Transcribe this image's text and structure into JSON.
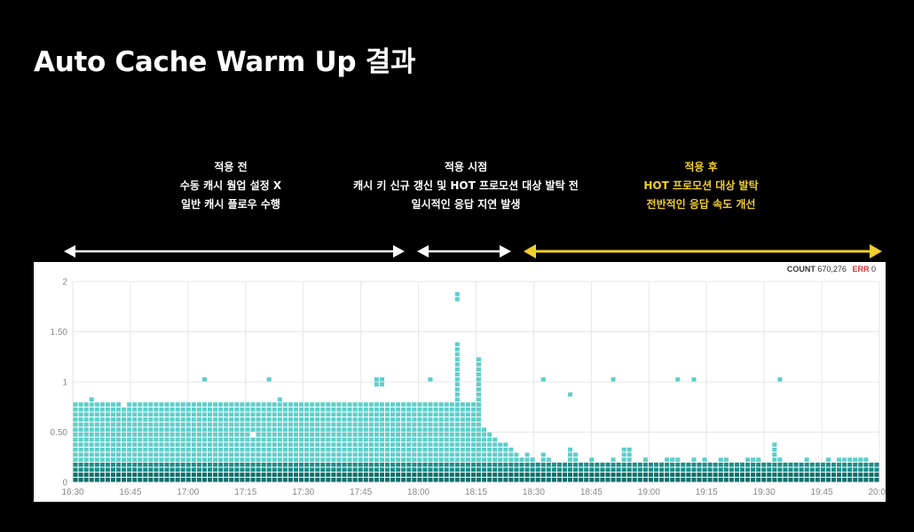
{
  "page": {
    "title": "Auto Cache Warm Up 결과"
  },
  "phases": [
    {
      "key": "before",
      "title": "적용 전",
      "lines": [
        "수동 캐시 웜업 설정 X",
        "일반 캐시 플로우 수행"
      ],
      "color": "#ffffff"
    },
    {
      "key": "during",
      "title": "적용 시점",
      "lines": [
        "캐시 키 신규 갱신 및 HOT 프로모션 대상 발탁 전",
        "일시적인 응답 지연 발생"
      ],
      "color": "#ffffff"
    },
    {
      "key": "after",
      "title": "적용 후",
      "lines": [
        "HOT 프로모션 대상 발탁",
        "전반적인 응답 속도 개선"
      ],
      "color": "#f1cf2a"
    }
  ],
  "legend": {
    "count_label": "COUNT",
    "count_value": "670,276",
    "err_label": "ERR",
    "err_value": "0"
  },
  "chart_data": {
    "type": "heatmap",
    "x_start": "16:30",
    "x_end": "20:00",
    "x_ticks": [
      "16:30",
      "16:45",
      "17:00",
      "17:15",
      "17:30",
      "17:45",
      "18:00",
      "18:15",
      "18:30",
      "18:45",
      "19:00",
      "19:15",
      "19:30",
      "19:45",
      "20:00"
    ],
    "y_ticks": [
      "0",
      "0.50",
      "1",
      "1.50",
      "2"
    ],
    "ylim": [
      0,
      2
    ],
    "y_bin_size": 0.05,
    "x_bin_minutes": 1.4,
    "grid": true,
    "colors": {
      "high": "#0d6e6a",
      "mid": "#178d88",
      "low": "#5ccfcb",
      "light": "#8ee0dc",
      "grid": "#e6e6e6"
    },
    "columns": [
      {
        "dense": [
          0,
          4
        ],
        "low": 12
      },
      {
        "dense": [
          0,
          4
        ],
        "low": 12
      },
      {
        "dense": [
          0,
          4
        ],
        "low": 12
      },
      {
        "dense": [
          0,
          4
        ],
        "low": 13
      },
      {
        "dense": [
          0,
          4
        ],
        "low": 12
      },
      {
        "dense": [
          0,
          4
        ],
        "low": 12
      },
      {
        "dense": [
          0,
          4
        ],
        "low": 12
      },
      {
        "dense": [
          0,
          4
        ],
        "low": 12
      },
      {
        "dense": [
          0,
          4
        ],
        "low": 12
      },
      {
        "dense": [
          0,
          4
        ],
        "low": 11
      },
      {
        "dense": [
          0,
          4
        ],
        "low": 12
      },
      {
        "dense": [
          0,
          4
        ],
        "low": 12
      },
      {
        "dense": [
          0,
          4
        ],
        "low": 12
      },
      {
        "dense": [
          0,
          4
        ],
        "low": 12
      },
      {
        "dense": [
          0,
          4
        ],
        "low": 12
      },
      {
        "dense": [
          0,
          4
        ],
        "low": 12
      },
      {
        "dense": [
          0,
          4
        ],
        "low": 12
      },
      {
        "dense": [
          0,
          4
        ],
        "low": 12
      },
      {
        "dense": [
          0,
          4
        ],
        "low": 12
      },
      {
        "dense": [
          0,
          4
        ],
        "low": 12
      },
      {
        "dense": [
          0,
          4
        ],
        "low": 12
      },
      {
        "dense": [
          0,
          4
        ],
        "low": 12
      },
      {
        "dense": [
          0,
          4
        ],
        "low": 12
      },
      {
        "dense": [
          0,
          4
        ],
        "low": 12
      },
      {
        "dense": [
          0,
          4
        ],
        "low": 12,
        "extra": [
          20
        ]
      },
      {
        "dense": [
          0,
          4
        ],
        "low": 12
      },
      {
        "dense": [
          0,
          4
        ],
        "low": 12
      },
      {
        "dense": [
          0,
          4
        ],
        "low": 12
      },
      {
        "dense": [
          0,
          4
        ],
        "low": 12
      },
      {
        "dense": [
          0,
          4
        ],
        "low": 12
      },
      {
        "dense": [
          0,
          4
        ],
        "low": 12
      },
      {
        "dense": [
          0,
          4
        ],
        "low": 12
      },
      {
        "dense": [
          0,
          4
        ],
        "low": 12
      },
      {
        "dense": [
          0,
          4
        ],
        "low": 12,
        "gap": [
          9
        ]
      },
      {
        "dense": [
          0,
          4
        ],
        "low": 12
      },
      {
        "dense": [
          0,
          4
        ],
        "low": 12
      },
      {
        "dense": [
          0,
          4
        ],
        "low": 12,
        "extra": [
          20
        ]
      },
      {
        "dense": [
          0,
          4
        ],
        "low": 12
      },
      {
        "dense": [
          0,
          4
        ],
        "low": 13
      },
      {
        "dense": [
          0,
          4
        ],
        "low": 12
      },
      {
        "dense": [
          0,
          4
        ],
        "low": 12
      },
      {
        "dense": [
          0,
          4
        ],
        "low": 12
      },
      {
        "dense": [
          0,
          4
        ],
        "low": 12
      },
      {
        "dense": [
          0,
          4
        ],
        "low": 12
      },
      {
        "dense": [
          0,
          4
        ],
        "low": 12
      },
      {
        "dense": [
          0,
          4
        ],
        "low": 12
      },
      {
        "dense": [
          0,
          4
        ],
        "low": 12
      },
      {
        "dense": [
          0,
          4
        ],
        "low": 12
      },
      {
        "dense": [
          0,
          4
        ],
        "low": 12
      },
      {
        "dense": [
          0,
          4
        ],
        "low": 12
      },
      {
        "dense": [
          0,
          4
        ],
        "low": 12
      },
      {
        "dense": [
          0,
          4
        ],
        "low": 12
      },
      {
        "dense": [
          0,
          4
        ],
        "low": 12
      },
      {
        "dense": [
          0,
          4
        ],
        "low": 12
      },
      {
        "dense": [
          0,
          4
        ],
        "low": 12
      },
      {
        "dense": [
          0,
          4
        ],
        "low": 12
      },
      {
        "dense": [
          0,
          4
        ],
        "low": 12,
        "extra": [
          13,
          19,
          20
        ]
      },
      {
        "dense": [
          0,
          4
        ],
        "low": 12,
        "extra": [
          19,
          20
        ]
      },
      {
        "dense": [
          0,
          4
        ],
        "low": 12
      },
      {
        "dense": [
          0,
          4
        ],
        "low": 12
      },
      {
        "dense": [
          0,
          4
        ],
        "low": 12
      },
      {
        "dense": [
          0,
          4
        ],
        "low": 12
      },
      {
        "dense": [
          0,
          4
        ],
        "low": 12
      },
      {
        "dense": [
          0,
          4
        ],
        "low": 12
      },
      {
        "dense": [
          0,
          4
        ],
        "low": 12
      },
      {
        "dense": [
          0,
          4
        ],
        "low": 12
      },
      {
        "dense": [
          0,
          4
        ],
        "low": 12,
        "extra": [
          20
        ]
      },
      {
        "dense": [
          0,
          4
        ],
        "low": 12
      },
      {
        "dense": [
          0,
          4
        ],
        "low": 12
      },
      {
        "dense": [
          0,
          4
        ],
        "low": 12
      },
      {
        "dense": [
          0,
          4
        ],
        "low": 12
      },
      {
        "dense": [
          0,
          4
        ],
        "low": 12,
        "extra": [
          13,
          14,
          15,
          16,
          17,
          18,
          19,
          20,
          21,
          22,
          23,
          24,
          25,
          26,
          27,
          36,
          37
        ]
      },
      {
        "dense": [
          0,
          4
        ],
        "low": 12
      },
      {
        "dense": [
          0,
          4
        ],
        "low": 12
      },
      {
        "dense": [
          0,
          4
        ],
        "low": 12
      },
      {
        "dense": [
          0,
          4
        ],
        "low": 12,
        "extra": [
          13,
          14,
          15,
          16,
          17,
          18,
          19,
          20,
          21,
          22,
          23,
          24
        ]
      },
      {
        "dense": [
          0,
          4
        ],
        "low": 7
      },
      {
        "dense": [
          0,
          4
        ],
        "low": 6
      },
      {
        "dense": [
          0,
          4
        ],
        "low": 5
      },
      {
        "dense": [
          0,
          4
        ],
        "low": 4
      },
      {
        "dense": [
          0,
          4
        ],
        "low": 4
      },
      {
        "dense": [
          0,
          4
        ],
        "low": 3
      },
      {
        "dense": [
          0,
          4
        ],
        "low": 2
      },
      {
        "dense": [
          0,
          4
        ],
        "low": 1
      },
      {
        "dense": [
          0,
          4
        ],
        "low": 2
      },
      {
        "dense": [
          0,
          4
        ],
        "low": 1
      },
      {
        "dense": [
          0,
          4
        ],
        "low": 0
      },
      {
        "dense": [
          0,
          4
        ],
        "low": 2,
        "extra": [
          20
        ]
      },
      {
        "dense": [
          0,
          4
        ],
        "low": 1
      },
      {
        "dense": [
          0,
          4
        ],
        "low": 0
      },
      {
        "dense": [
          0,
          4
        ],
        "low": 0
      },
      {
        "dense": [
          0,
          4
        ],
        "low": 0
      },
      {
        "dense": [
          0,
          4
        ],
        "low": 3,
        "extra": [
          17
        ]
      },
      {
        "dense": [
          0,
          4
        ],
        "low": 2
      },
      {
        "dense": [
          0,
          4
        ],
        "low": 0
      },
      {
        "dense": [
          0,
          4
        ],
        "low": 0
      },
      {
        "dense": [
          0,
          4
        ],
        "low": 1
      },
      {
        "dense": [
          0,
          4
        ],
        "low": 0
      },
      {
        "dense": [
          0,
          4
        ],
        "low": 0
      },
      {
        "dense": [
          0,
          4
        ],
        "low": 0
      },
      {
        "dense": [
          0,
          4
        ],
        "low": 1,
        "extra": [
          20
        ]
      },
      {
        "dense": [
          0,
          4
        ],
        "low": 0
      },
      {
        "dense": [
          0,
          4
        ],
        "low": 3
      },
      {
        "dense": [
          0,
          4
        ],
        "low": 3
      },
      {
        "dense": [
          0,
          4
        ],
        "low": 0
      },
      {
        "dense": [
          0,
          4
        ],
        "low": 0
      },
      {
        "dense": [
          0,
          4
        ],
        "low": 1
      },
      {
        "dense": [
          0,
          4
        ],
        "low": 0
      },
      {
        "dense": [
          0,
          4
        ],
        "low": 0
      },
      {
        "dense": [
          0,
          4
        ],
        "low": 0
      },
      {
        "dense": [
          0,
          4
        ],
        "low": 1
      },
      {
        "dense": [
          0,
          4
        ],
        "low": 1
      },
      {
        "dense": [
          0,
          4
        ],
        "low": 1,
        "extra": [
          20
        ]
      },
      {
        "dense": [
          0,
          4
        ],
        "low": 0
      },
      {
        "dense": [
          0,
          4
        ],
        "low": 0
      },
      {
        "dense": [
          0,
          4
        ],
        "low": 1,
        "extra": [
          20
        ]
      },
      {
        "dense": [
          0,
          4
        ],
        "low": 0
      },
      {
        "dense": [
          0,
          4
        ],
        "low": 1
      },
      {
        "dense": [
          0,
          4
        ],
        "low": 0
      },
      {
        "dense": [
          0,
          4
        ],
        "low": 0
      },
      {
        "dense": [
          0,
          4
        ],
        "low": 1
      },
      {
        "dense": [
          0,
          4
        ],
        "low": 1
      },
      {
        "dense": [
          0,
          4
        ],
        "low": 0
      },
      {
        "dense": [
          0,
          4
        ],
        "low": 0
      },
      {
        "dense": [
          0,
          4
        ],
        "low": 0
      },
      {
        "dense": [
          0,
          4
        ],
        "low": 1
      },
      {
        "dense": [
          0,
          4
        ],
        "low": 1
      },
      {
        "dense": [
          0,
          4
        ],
        "low": 1
      },
      {
        "dense": [
          0,
          4
        ],
        "low": 0
      },
      {
        "dense": [
          0,
          4
        ],
        "low": 0
      },
      {
        "dense": [
          0,
          4
        ],
        "low": 4
      },
      {
        "dense": [
          0,
          4
        ],
        "low": 1,
        "extra": [
          20
        ]
      },
      {
        "dense": [
          0,
          4
        ],
        "low": 0
      },
      {
        "dense": [
          0,
          4
        ],
        "low": 0
      },
      {
        "dense": [
          0,
          4
        ],
        "low": 0
      },
      {
        "dense": [
          0,
          4
        ],
        "low": 0
      },
      {
        "dense": [
          0,
          4
        ],
        "low": 1
      },
      {
        "dense": [
          0,
          4
        ],
        "low": 0
      },
      {
        "dense": [
          0,
          4
        ],
        "low": 0
      },
      {
        "dense": [
          0,
          4
        ],
        "low": 0
      },
      {
        "dense": [
          0,
          4
        ],
        "low": 1
      },
      {
        "dense": [
          0,
          4
        ],
        "low": 0
      },
      {
        "dense": [
          0,
          4
        ],
        "low": 1
      },
      {
        "dense": [
          0,
          4
        ],
        "low": 1
      },
      {
        "dense": [
          0,
          4
        ],
        "low": 1
      },
      {
        "dense": [
          0,
          4
        ],
        "low": 1
      },
      {
        "dense": [
          0,
          4
        ],
        "low": 1
      },
      {
        "dense": [
          0,
          4
        ],
        "low": 1
      },
      {
        "dense": [
          0,
          4
        ],
        "low": 0
      },
      {
        "dense": [
          0,
          4
        ],
        "low": 0
      }
    ]
  }
}
